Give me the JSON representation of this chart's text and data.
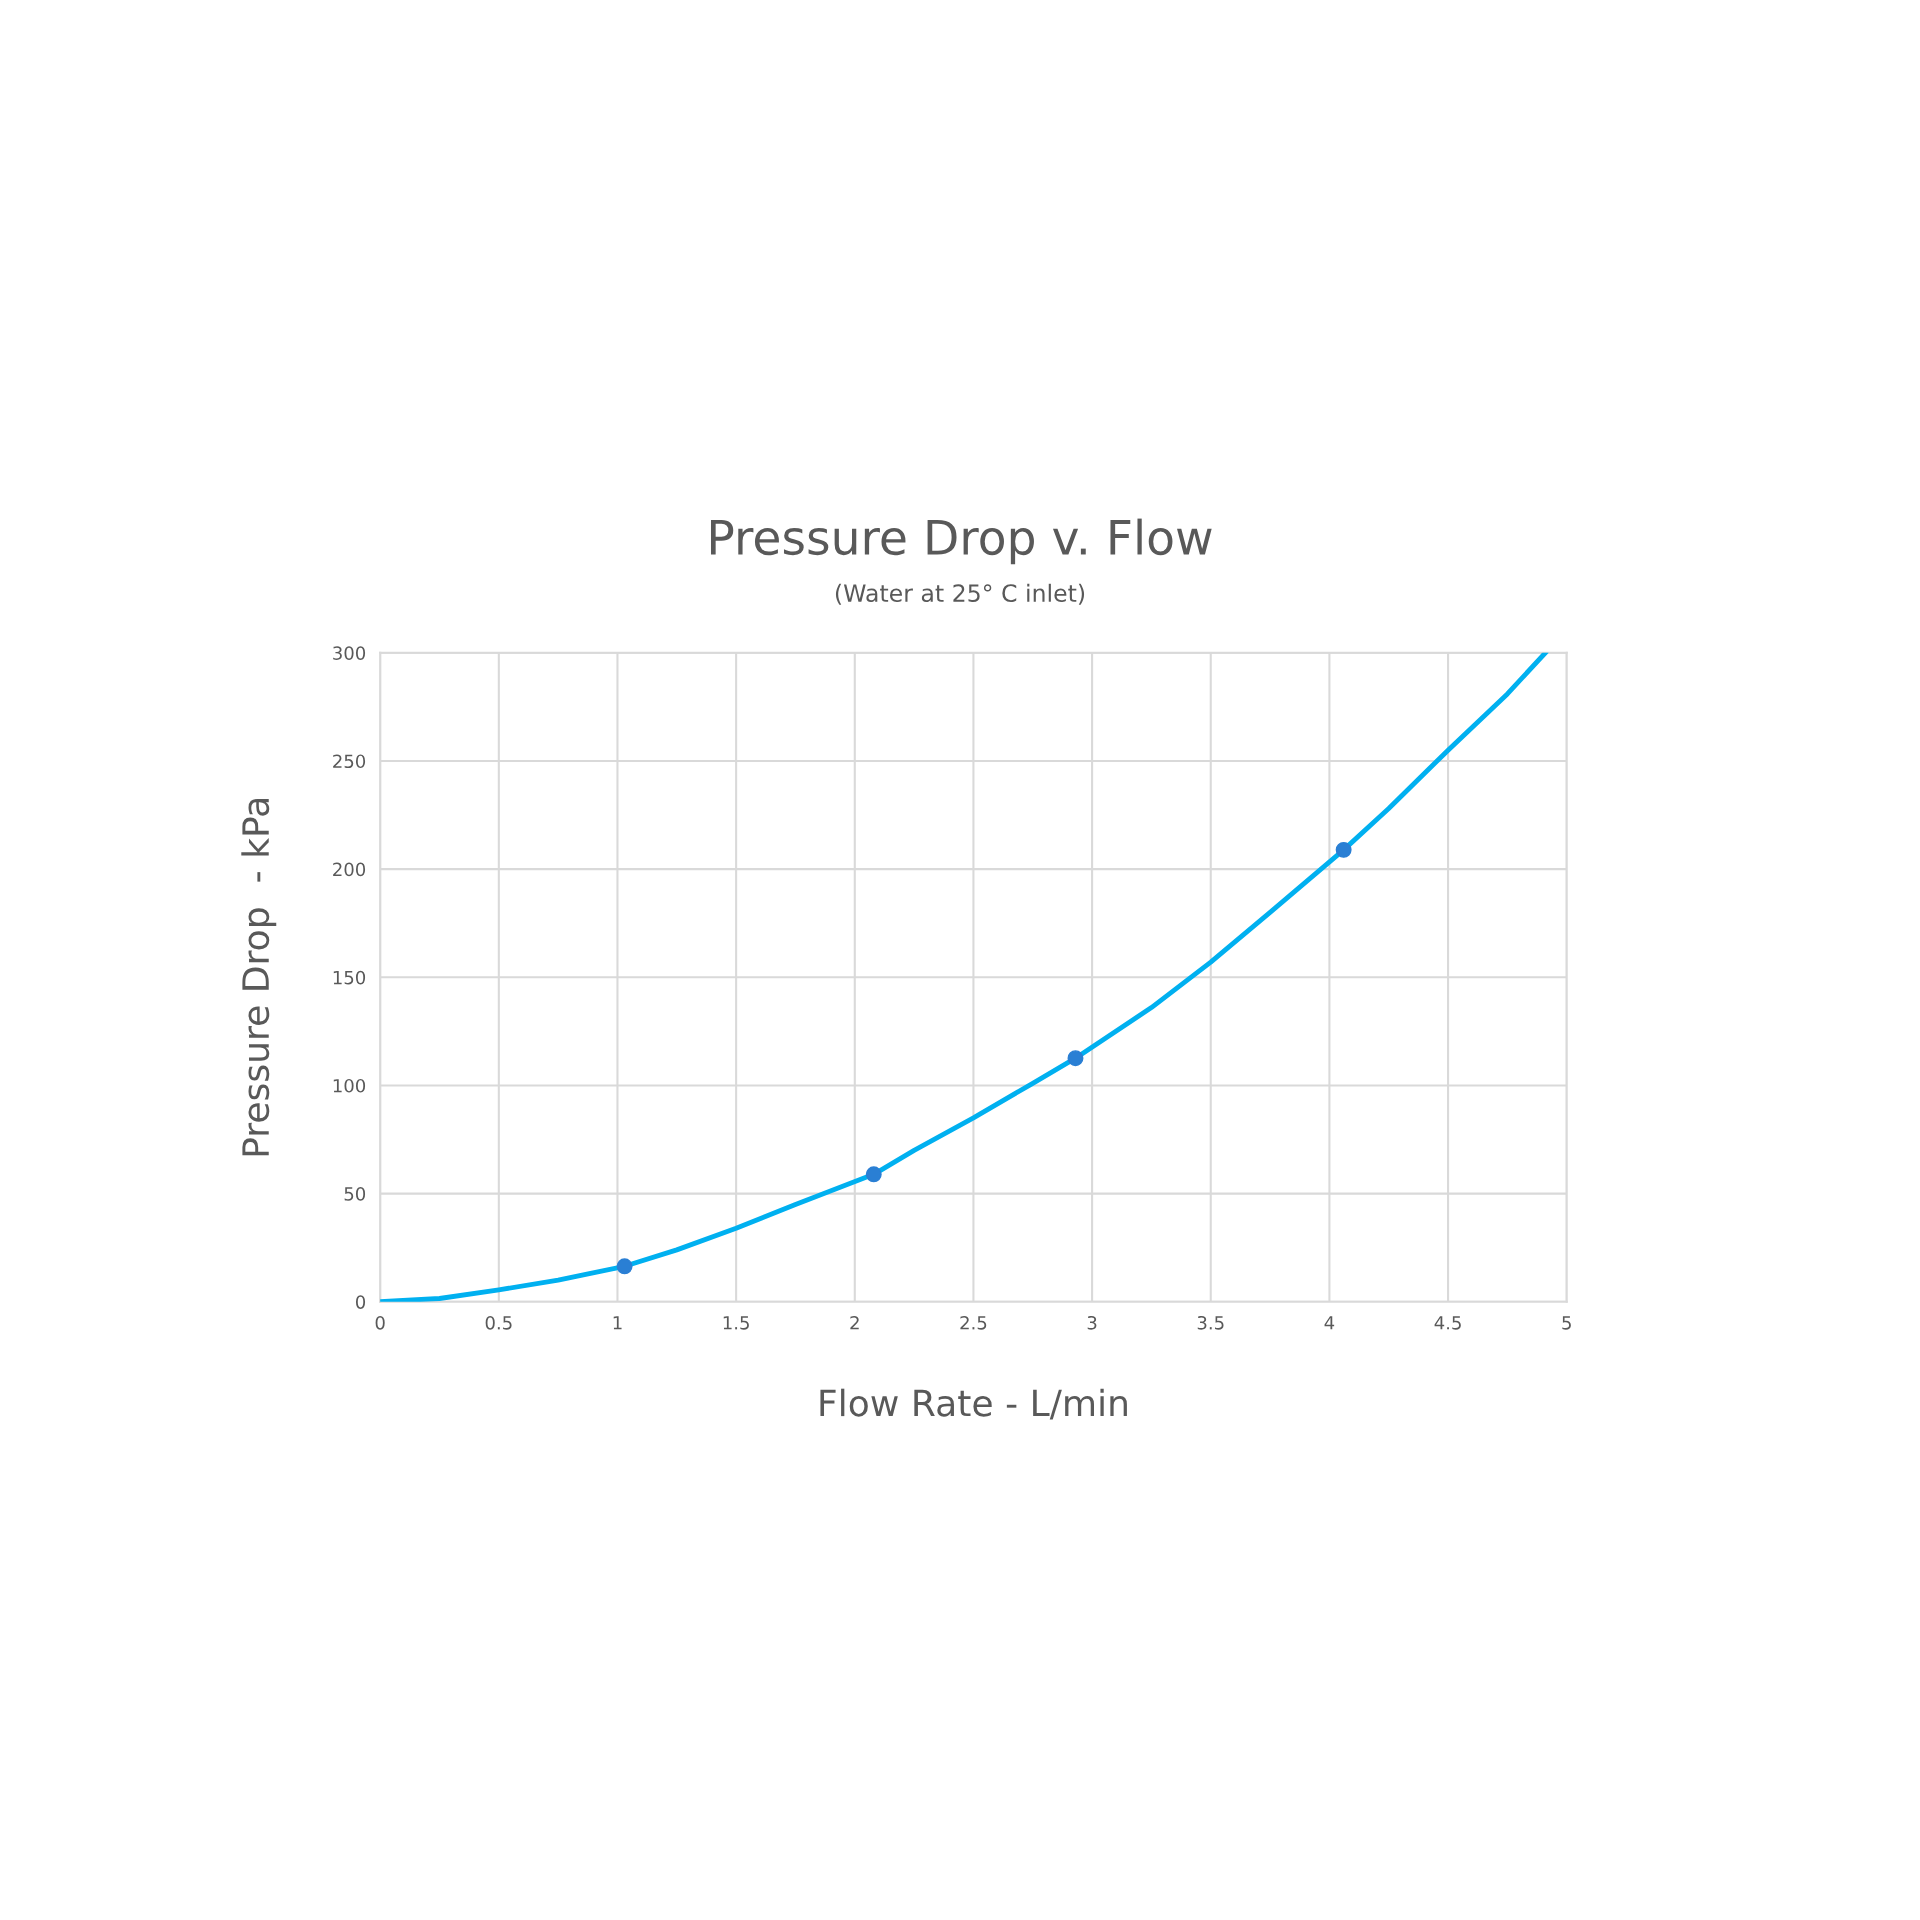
{
  "chart_data": {
    "type": "line",
    "title": "Pressure Drop v. Flow",
    "subtitle": "(Water at 25° C inlet)",
    "xlabel": "Flow Rate - L/min",
    "ylabel": "Pressure Drop  - kPa",
    "xlim": [
      0,
      5
    ],
    "xticks": [
      0,
      {
        "value": 0.5,
        "label": "0.5"
      },
      1,
      {
        "value": 1.5,
        "label": "1.5"
      },
      2,
      {
        "value": 2.5,
        "label": "2.5"
      },
      3,
      {
        "value": 3.5,
        "label": "3.5"
      },
      4,
      {
        "value": 4.5,
        "label": "4.5"
      },
      5
    ],
    "ylim": [
      0,
      300
    ],
    "yticks": [
      0,
      50,
      100,
      150,
      200,
      250,
      300
    ],
    "grid": true,
    "series": [
      {
        "color": "#00b0f0",
        "marker": "none",
        "x": [
          0,
          0.25,
          0.5,
          0.75,
          1.03,
          1.25,
          1.5,
          1.75,
          2.08,
          2.25,
          2.5,
          2.75,
          2.93,
          3.25,
          3.5,
          3.75,
          4.06,
          4.25,
          4.5,
          4.75,
          4.91
        ],
        "values": [
          0,
          1.5,
          5.5,
          10,
          16.4,
          24,
          34,
          45,
          58.9,
          70,
          85,
          101,
          112.6,
          136,
          157,
          180,
          208.9,
          228,
          255,
          281,
          300
        ]
      },
      {
        "type": "scatter",
        "color": "#2a7fd4",
        "marker": "circle",
        "x": [
          1.03,
          2.08,
          2.93,
          4.06
        ],
        "values": [
          16.4,
          58.9,
          112.6,
          208.9
        ]
      }
    ]
  }
}
